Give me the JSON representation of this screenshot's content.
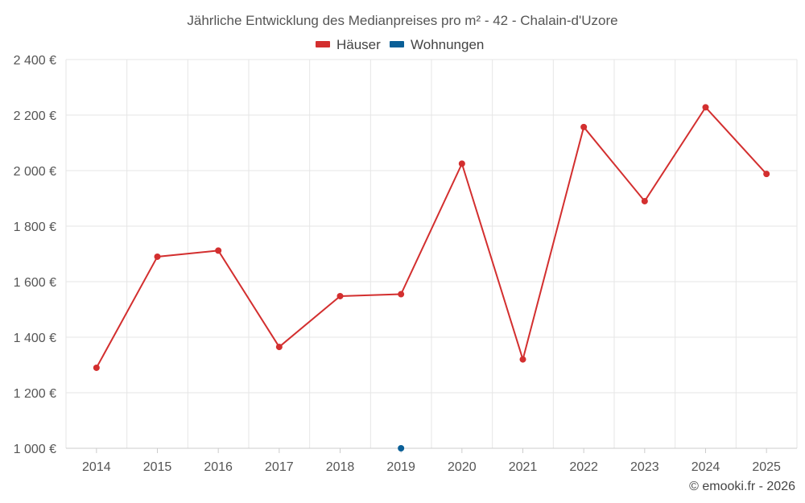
{
  "chart_data": {
    "type": "line",
    "title": "Jährliche Entwicklung des Medianpreises pro m² - 42 - Chalain-d'Uzore",
    "categories": [
      "2014",
      "2015",
      "2016",
      "2017",
      "2018",
      "2019",
      "2020",
      "2021",
      "2022",
      "2023",
      "2024",
      "2025"
    ],
    "series": [
      {
        "name": "Häuser",
        "color": "#d32f2f",
        "values": [
          1290,
          1690,
          1712,
          1365,
          1548,
          1555,
          2025,
          1320,
          2157,
          1890,
          2228,
          1988
        ]
      },
      {
        "name": "Wohnungen",
        "color": "#0a5f97",
        "values": [
          null,
          null,
          null,
          null,
          null,
          1000,
          null,
          null,
          null,
          null,
          null,
          null
        ]
      }
    ],
    "ylim": [
      1000,
      2400
    ],
    "yticks": [
      1000,
      1200,
      1400,
      1600,
      1800,
      2000,
      2200,
      2400
    ],
    "ytick_labels": [
      "1 000 €",
      "1 200 €",
      "1 400 €",
      "1 600 €",
      "1 800 €",
      "2 000 €",
      "2 200 €",
      "2 400 €"
    ],
    "grid": true,
    "legend_position": "top-center"
  },
  "credit": "© emooki.fr - 2026"
}
